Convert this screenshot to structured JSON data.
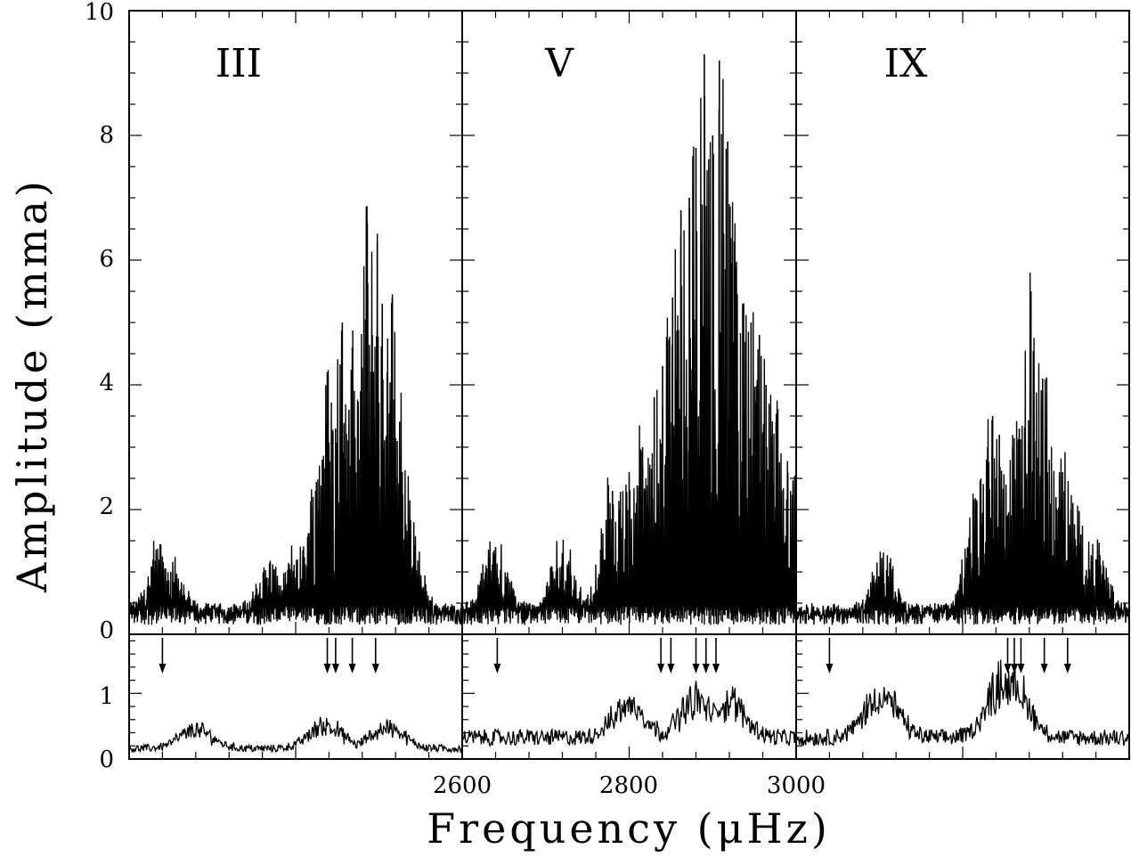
{
  "chart_data": {
    "type": "line",
    "title": "",
    "xlabel": "Frequency (μHz)",
    "ylabel": "Amplitude (mma)",
    "x_ticks": [
      2600,
      2800,
      3000
    ],
    "x_ticks_unlabeled": [
      2400,
      2500,
      2700,
      2900
    ],
    "top_ylim": [
      0,
      10
    ],
    "top_yticks": [
      0,
      2,
      4,
      6,
      8,
      10
    ],
    "bottom_ylim": [
      0,
      1.9
    ],
    "bottom_yticks": [
      0,
      1
    ],
    "panels": [
      {
        "label": "III",
        "xlim": [
          2400,
          2600
        ],
        "peaks": [
          {
            "x": 2418,
            "y": 1.2
          },
          {
            "x": 2425,
            "y": 1.0
          },
          {
            "x": 2484,
            "y": 0.9
          },
          {
            "x": 2501,
            "y": 1.2
          },
          {
            "x": 2509,
            "y": 1.5
          },
          {
            "x": 2512,
            "y": 2.3
          },
          {
            "x": 2516,
            "y": 2.8
          },
          {
            "x": 2519,
            "y": 4.2
          },
          {
            "x": 2524,
            "y": 3.3
          },
          {
            "x": 2528,
            "y": 5.0
          },
          {
            "x": 2532,
            "y": 3.6
          },
          {
            "x": 2534,
            "y": 4.6
          },
          {
            "x": 2539,
            "y": 3.9
          },
          {
            "x": 2543,
            "y": 6.6
          },
          {
            "x": 2546,
            "y": 4.8
          },
          {
            "x": 2549,
            "y": 6.3
          },
          {
            "x": 2552,
            "y": 5.3
          },
          {
            "x": 2555,
            "y": 4.2
          },
          {
            "x": 2558,
            "y": 5.4
          },
          {
            "x": 2561,
            "y": 3.1
          },
          {
            "x": 2564,
            "y": 2.6
          },
          {
            "x": 2568,
            "y": 1.6
          }
        ],
        "noise_peaks": [
          {
            "x": 2440,
            "y": 0.4
          },
          {
            "x": 2518,
            "y": 0.5
          },
          {
            "x": 2555,
            "y": 0.45
          }
        ],
        "arrows": [
          2420,
          2519,
          2524,
          2534,
          2548
        ]
      },
      {
        "label": "V",
        "xlim": [
          2600,
          2800
        ],
        "peaks": [
          {
            "x": 2620,
            "y": 1.4
          },
          {
            "x": 2660,
            "y": 1.3
          },
          {
            "x": 2690,
            "y": 2.3
          },
          {
            "x": 2700,
            "y": 2.6
          },
          {
            "x": 2708,
            "y": 3.0
          },
          {
            "x": 2715,
            "y": 3.8
          },
          {
            "x": 2720,
            "y": 4.3
          },
          {
            "x": 2726,
            "y": 5.4
          },
          {
            "x": 2731,
            "y": 6.8
          },
          {
            "x": 2736,
            "y": 7.0
          },
          {
            "x": 2740,
            "y": 7.8
          },
          {
            "x": 2745,
            "y": 9.3
          },
          {
            "x": 2750,
            "y": 8.0
          },
          {
            "x": 2754,
            "y": 9.2
          },
          {
            "x": 2759,
            "y": 7.9
          },
          {
            "x": 2763,
            "y": 6.3
          },
          {
            "x": 2768,
            "y": 5.3
          },
          {
            "x": 2773,
            "y": 5.0
          },
          {
            "x": 2778,
            "y": 4.8
          },
          {
            "x": 2782,
            "y": 4.0
          },
          {
            "x": 2788,
            "y": 3.4
          },
          {
            "x": 2795,
            "y": 2.6
          }
        ],
        "noise_peaks": [
          {
            "x": 2700,
            "y": 0.7
          },
          {
            "x": 2740,
            "y": 0.8
          },
          {
            "x": 2760,
            "y": 0.75
          }
        ],
        "arrows": [
          2621,
          2719,
          2725,
          2740,
          2746,
          2752
        ]
      },
      {
        "label": "IX",
        "xlim": [
          2800,
          3000
        ],
        "peaks": [
          {
            "x": 2852,
            "y": 1.0
          },
          {
            "x": 2908,
            "y": 2.0
          },
          {
            "x": 2915,
            "y": 3.0
          },
          {
            "x": 2918,
            "y": 3.5
          },
          {
            "x": 2922,
            "y": 3.2
          },
          {
            "x": 2926,
            "y": 2.4
          },
          {
            "x": 2930,
            "y": 3.0
          },
          {
            "x": 2934,
            "y": 3.3
          },
          {
            "x": 2938,
            "y": 2.5
          },
          {
            "x": 2941,
            "y": 5.5
          },
          {
            "x": 2944,
            "y": 3.1
          },
          {
            "x": 2948,
            "y": 4.1
          },
          {
            "x": 2952,
            "y": 2.8
          },
          {
            "x": 2956,
            "y": 2.2
          },
          {
            "x": 2960,
            "y": 2.6
          },
          {
            "x": 2965,
            "y": 2.0
          },
          {
            "x": 2971,
            "y": 1.6
          },
          {
            "x": 2980,
            "y": 1.2
          }
        ],
        "noise_peaks": [
          {
            "x": 2851,
            "y": 0.9
          },
          {
            "x": 2925,
            "y": 1.2
          },
          {
            "x": 2930,
            "y": 1.1
          }
        ],
        "arrows": [
          2820,
          2927,
          2931,
          2935,
          2949,
          2963
        ]
      }
    ]
  }
}
